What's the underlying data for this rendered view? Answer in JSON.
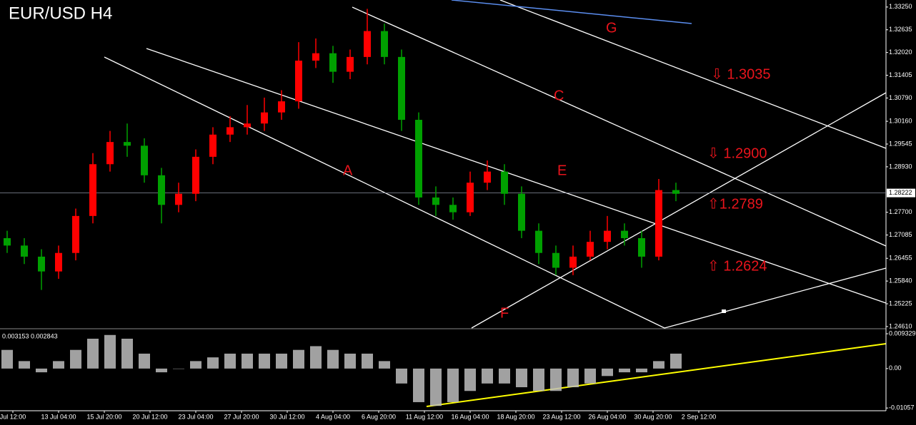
{
  "chart_data": {
    "type": "candlestick",
    "title": "EUR/USD  H4",
    "open": [
      1.27,
      1.268,
      1.265,
      1.261,
      1.266,
      1.276,
      1.29,
      1.296,
      1.295,
      1.287,
      1.279,
      1.282,
      1.292,
      1.298,
      1.3,
      1.301,
      1.304,
      1.307,
      1.318,
      1.32,
      1.315,
      1.319,
      1.326,
      1.319,
      1.302,
      1.281,
      1.279,
      1.277,
      1.285,
      1.288,
      1.282,
      1.272,
      1.266,
      1.262,
      1.265,
      1.269,
      1.272,
      1.27,
      1.265,
      1.283
    ],
    "high": [
      1.272,
      1.27,
      1.267,
      1.268,
      1.278,
      1.293,
      1.299,
      1.301,
      1.297,
      1.289,
      1.285,
      1.294,
      1.3,
      1.303,
      1.306,
      1.308,
      1.31,
      1.323,
      1.324,
      1.322,
      1.321,
      1.332,
      1.328,
      1.321,
      1.304,
      1.284,
      1.281,
      1.288,
      1.291,
      1.29,
      1.284,
      1.274,
      1.268,
      1.268,
      1.272,
      1.276,
      1.274,
      1.272,
      1.286,
      1.285
    ],
    "low": [
      1.266,
      1.263,
      1.256,
      1.259,
      1.264,
      1.274,
      1.288,
      1.292,
      1.285,
      1.274,
      1.277,
      1.28,
      1.29,
      1.296,
      1.298,
      1.299,
      1.302,
      1.305,
      1.316,
      1.312,
      1.313,
      1.317,
      1.317,
      1.299,
      1.279,
      1.276,
      1.275,
      1.276,
      1.283,
      1.279,
      1.27,
      1.263,
      1.26,
      1.26,
      1.264,
      1.267,
      1.268,
      1.262,
      1.264,
      1.28
    ],
    "close": [
      1.268,
      1.265,
      1.261,
      1.266,
      1.276,
      1.29,
      1.296,
      1.295,
      1.287,
      1.279,
      1.282,
      1.292,
      1.298,
      1.3,
      1.301,
      1.304,
      1.307,
      1.318,
      1.32,
      1.315,
      1.319,
      1.326,
      1.319,
      1.302,
      1.281,
      1.279,
      1.277,
      1.285,
      1.288,
      1.282,
      1.272,
      1.266,
      1.262,
      1.265,
      1.269,
      1.272,
      1.27,
      1.265,
      1.283,
      1.282
    ],
    "up_color": "#ff0000",
    "down_color": "#00a000",
    "ylim": [
      1.2457,
      1.3344
    ],
    "yticks": [
      {
        "value": 1.3325,
        "label": "1.33250"
      },
      {
        "value": 1.32635,
        "label": "1.32635"
      },
      {
        "value": 1.3202,
        "label": "1.32020"
      },
      {
        "value": 1.31405,
        "label": "1.31405"
      },
      {
        "value": 1.3079,
        "label": "1.30790"
      },
      {
        "value": 1.3016,
        "label": "1.30160"
      },
      {
        "value": 1.29545,
        "label": "1.29545"
      },
      {
        "value": 1.2893,
        "label": "1.28930"
      },
      {
        "value": 1.277,
        "label": "1.27700"
      },
      {
        "value": 1.27085,
        "label": "1.27085"
      },
      {
        "value": 1.26455,
        "label": "1.26455"
      },
      {
        "value": 1.2584,
        "label": "1.25840"
      },
      {
        "value": 1.25225,
        "label": "1.25225"
      },
      {
        "value": 1.2461,
        "label": "1.24610"
      }
    ],
    "last_price": {
      "value": 1.28222,
      "label": "1.28222"
    },
    "time_labels": [
      "Jul 12:00",
      "13 Jul 04:00",
      "15 Jul 20:00",
      "20 Jul 12:00",
      "23 Jul 04:00",
      "27 Jul 20:00",
      "30 Jul 12:00",
      "4 Aug 04:00",
      "6 Aug 20:00",
      "11 Aug 12:00",
      "16 Aug 04:00",
      "18 Aug 20:00",
      "23 Aug 12:00",
      "26 Aug 04:00",
      "30 Aug 20:00",
      "2 Sep 12:00"
    ],
    "annotations": [
      "A",
      "C",
      "E",
      "F",
      "G",
      "⇩ 1.3035",
      "⇩ 1.2900",
      "⇧1.2789",
      "⇧ 1.2624"
    ],
    "oscillator": {
      "header": "0.003153 0.002843",
      "values": [
        0.005,
        0.002,
        -0.001,
        0.002,
        0.005,
        0.008,
        0.009,
        0.008,
        0.004,
        -0.001,
        0.0,
        0.002,
        0.003,
        0.004,
        0.004,
        0.004,
        0.004,
        0.005,
        0.006,
        0.005,
        0.004,
        0.004,
        0.002,
        -0.004,
        -0.009,
        -0.01,
        -0.009,
        -0.006,
        -0.004,
        -0.004,
        -0.005,
        -0.006,
        -0.006,
        -0.005,
        -0.004,
        -0.002,
        -0.001,
        -0.001,
        0.002,
        0.004
      ],
      "ylim": [
        -0.0113,
        0.0101
      ],
      "yticks": [
        {
          "value": 0.009329,
          "label": "0.009329"
        },
        {
          "value": 0,
          "label": "0.00"
        },
        {
          "value": -0.01057,
          "label": "-0.01057"
        }
      ]
    }
  }
}
